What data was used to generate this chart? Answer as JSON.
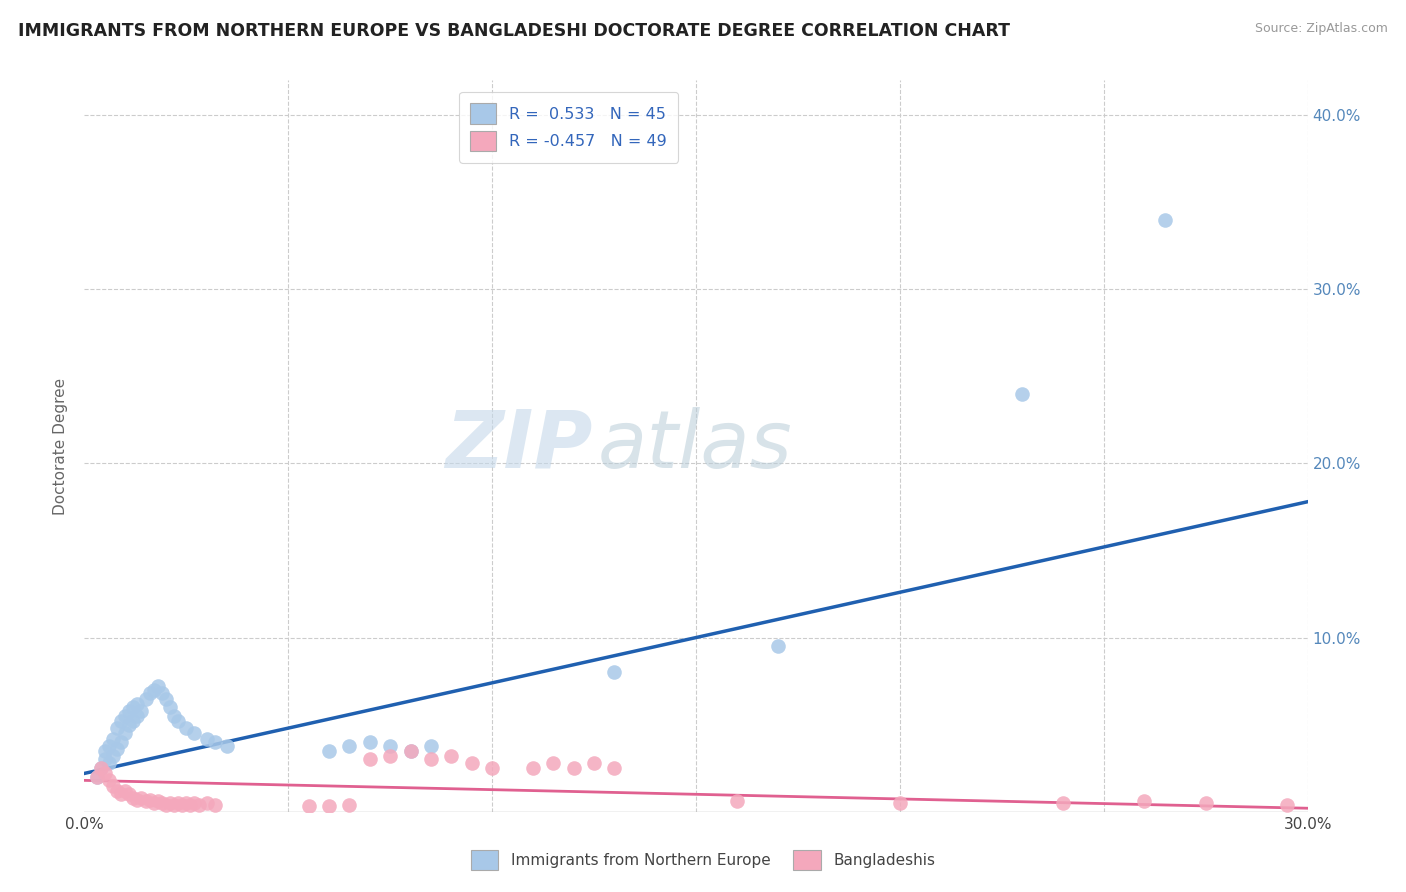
{
  "title": "IMMIGRANTS FROM NORTHERN EUROPE VS BANGLADESHI DOCTORATE DEGREE CORRELATION CHART",
  "source": "Source: ZipAtlas.com",
  "ylabel": "Doctorate Degree",
  "xlim": [
    0.0,
    0.3
  ],
  "ylim": [
    0.0,
    0.42
  ],
  "watermark_zip": "ZIP",
  "watermark_atlas": "atlas",
  "legend_line1_r": "R =  0.533",
  "legend_line1_n": "N = 45",
  "legend_line2_r": "R = -0.457",
  "legend_line2_n": "N = 49",
  "blue_fill": "#a8c8e8",
  "pink_fill": "#f4a8bc",
  "blue_line": "#2060b0",
  "pink_line": "#e06090",
  "blue_scatter": [
    [
      0.003,
      0.02
    ],
    [
      0.004,
      0.025
    ],
    [
      0.005,
      0.03
    ],
    [
      0.005,
      0.035
    ],
    [
      0.006,
      0.028
    ],
    [
      0.006,
      0.038
    ],
    [
      0.007,
      0.032
    ],
    [
      0.007,
      0.042
    ],
    [
      0.008,
      0.036
    ],
    [
      0.008,
      0.048
    ],
    [
      0.009,
      0.04
    ],
    [
      0.009,
      0.052
    ],
    [
      0.01,
      0.045
    ],
    [
      0.01,
      0.055
    ],
    [
      0.011,
      0.05
    ],
    [
      0.011,
      0.058
    ],
    [
      0.012,
      0.052
    ],
    [
      0.012,
      0.06
    ],
    [
      0.013,
      0.055
    ],
    [
      0.013,
      0.062
    ],
    [
      0.014,
      0.058
    ],
    [
      0.015,
      0.065
    ],
    [
      0.016,
      0.068
    ],
    [
      0.017,
      0.07
    ],
    [
      0.018,
      0.072
    ],
    [
      0.019,
      0.068
    ],
    [
      0.02,
      0.065
    ],
    [
      0.021,
      0.06
    ],
    [
      0.022,
      0.055
    ],
    [
      0.023,
      0.052
    ],
    [
      0.025,
      0.048
    ],
    [
      0.027,
      0.045
    ],
    [
      0.03,
      0.042
    ],
    [
      0.032,
      0.04
    ],
    [
      0.035,
      0.038
    ],
    [
      0.06,
      0.035
    ],
    [
      0.065,
      0.038
    ],
    [
      0.07,
      0.04
    ],
    [
      0.075,
      0.038
    ],
    [
      0.08,
      0.035
    ],
    [
      0.085,
      0.038
    ],
    [
      0.13,
      0.08
    ],
    [
      0.17,
      0.095
    ],
    [
      0.23,
      0.24
    ],
    [
      0.265,
      0.34
    ]
  ],
  "pink_scatter": [
    [
      0.003,
      0.02
    ],
    [
      0.004,
      0.025
    ],
    [
      0.005,
      0.022
    ],
    [
      0.006,
      0.018
    ],
    [
      0.007,
      0.015
    ],
    [
      0.008,
      0.012
    ],
    [
      0.009,
      0.01
    ],
    [
      0.01,
      0.012
    ],
    [
      0.011,
      0.01
    ],
    [
      0.012,
      0.008
    ],
    [
      0.013,
      0.007
    ],
    [
      0.014,
      0.008
    ],
    [
      0.015,
      0.006
    ],
    [
      0.016,
      0.007
    ],
    [
      0.017,
      0.005
    ],
    [
      0.018,
      0.006
    ],
    [
      0.019,
      0.005
    ],
    [
      0.02,
      0.004
    ],
    [
      0.021,
      0.005
    ],
    [
      0.022,
      0.004
    ],
    [
      0.023,
      0.005
    ],
    [
      0.024,
      0.004
    ],
    [
      0.025,
      0.005
    ],
    [
      0.026,
      0.004
    ],
    [
      0.027,
      0.005
    ],
    [
      0.028,
      0.004
    ],
    [
      0.03,
      0.005
    ],
    [
      0.032,
      0.004
    ],
    [
      0.055,
      0.003
    ],
    [
      0.06,
      0.003
    ],
    [
      0.065,
      0.004
    ],
    [
      0.07,
      0.03
    ],
    [
      0.075,
      0.032
    ],
    [
      0.08,
      0.035
    ],
    [
      0.085,
      0.03
    ],
    [
      0.09,
      0.032
    ],
    [
      0.095,
      0.028
    ],
    [
      0.1,
      0.025
    ],
    [
      0.11,
      0.025
    ],
    [
      0.115,
      0.028
    ],
    [
      0.12,
      0.025
    ],
    [
      0.125,
      0.028
    ],
    [
      0.13,
      0.025
    ],
    [
      0.16,
      0.006
    ],
    [
      0.2,
      0.005
    ],
    [
      0.24,
      0.005
    ],
    [
      0.26,
      0.006
    ],
    [
      0.275,
      0.005
    ],
    [
      0.295,
      0.004
    ]
  ],
  "blue_line_pts": [
    [
      0.0,
      0.022
    ],
    [
      0.3,
      0.178
    ]
  ],
  "pink_line_pts": [
    [
      0.0,
      0.018
    ],
    [
      0.3,
      0.002
    ]
  ]
}
